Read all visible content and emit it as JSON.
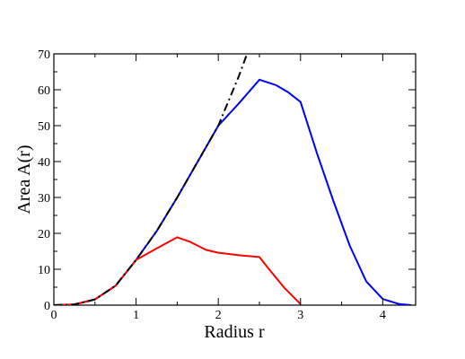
{
  "chart_data": {
    "type": "line",
    "xlabel": "Radius r",
    "ylabel": "Area A(r)",
    "xlim": [
      0,
      4.4
    ],
    "ylim": [
      0,
      70
    ],
    "xticks": [
      0,
      1,
      2,
      3,
      4
    ],
    "yticks": [
      0,
      10,
      20,
      30,
      40,
      50,
      60,
      70
    ],
    "grid": false,
    "legend": "none",
    "series": [
      {
        "color": "#0000ff",
        "style": "solid",
        "x": [
          0,
          0.25,
          0.5,
          0.75,
          1.0,
          1.25,
          1.5,
          1.75,
          2.0,
          2.25,
          2.5,
          2.7,
          2.85,
          3.0,
          3.2,
          3.4,
          3.6,
          3.8,
          4.0,
          4.2,
          4.35
        ],
        "y": [
          0,
          0.2,
          1.6,
          5.4,
          12.6,
          20.6,
          30.0,
          40.0,
          50.0,
          56.2,
          62.8,
          61.3,
          59.3,
          56.6,
          42.3,
          29.0,
          16.5,
          6.6,
          1.7,
          0.3,
          0
        ]
      },
      {
        "color": "#ff0000",
        "style": "solid",
        "x": [
          0,
          0.25,
          0.5,
          0.75,
          1.0,
          1.25,
          1.5,
          1.65,
          1.85,
          2.0,
          2.25,
          2.5,
          2.6,
          2.8,
          3.0
        ],
        "y": [
          0,
          0.2,
          1.6,
          5.4,
          12.6,
          15.8,
          18.9,
          17.7,
          15.4,
          14.6,
          13.9,
          13.4,
          10.5,
          4.9,
          0.3
        ]
      },
      {
        "color": "#000000",
        "style": "dash-dot",
        "x": [
          0,
          0.25,
          0.5,
          0.75,
          1.0,
          1.25,
          1.5,
          1.75,
          2.0,
          2.25,
          2.35
        ],
        "y": [
          0,
          0.2,
          1.6,
          5.4,
          12.6,
          20.6,
          30.0,
          40.0,
          50.0,
          63.8,
          70.0
        ]
      }
    ]
  }
}
